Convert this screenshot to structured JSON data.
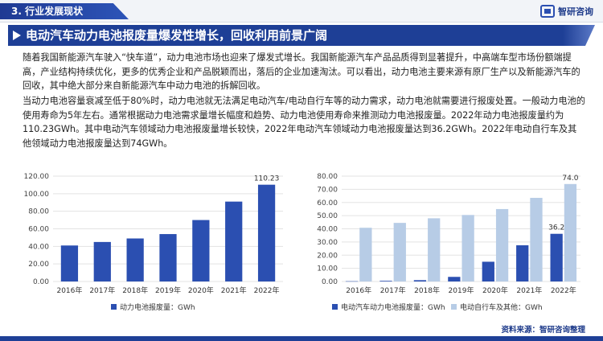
{
  "header": {
    "section": "3. 行业发展现状",
    "logo": "智研咨询"
  },
  "banner": {
    "title": "电动汽车动力电池报废量爆发性增长，回收利用前景广阔"
  },
  "paragraphs": [
    "随着我国新能源汽车驶入“快车道”，动力电池市场也迎来了爆发式增长。我国新能源汽车产品品质得到显著提升，中高端车型市场份额端提高，产业结构持续优化，更多的优秀企业和产品脱颖而出，落后的企业加速淘汰。可以看出，动力电池主要来源有原厂生产以及新能源汽车的回收，其中绝大部分来自新能源汽车中动力电池的拆解回收。",
    "当动力电池容量衰减至低于80%时，动力电池就无法满足电动汽车/电动自行车等的动力需求，动力电池就需要进行报废处置。一般动力电池的使用寿命为5年左右。通常根据动力电池需求量增长幅度和趋势、动力电池使用寿命来推测动力电池报废量。2022年动力电池报废量约为110.23GWh。其中电动汽车领域动力电池报废量增长较快，2022年电动汽车领域动力电池报废量达到36.2GWh。2022年电动自行车及其他领域动力电池报废量达到74GWh。"
  ],
  "chart_data": [
    {
      "type": "bar",
      "categories": [
        "2016年",
        "2017年",
        "2018年",
        "2019年",
        "2020年",
        "2021年",
        "2022年"
      ],
      "series": [
        {
          "name": "动力电池报废量：GWh",
          "values": [
            41,
            45,
            49,
            54,
            70,
            91,
            110.23
          ],
          "color": "#2b4fb1"
        }
      ],
      "data_labels": [
        {
          "index": 6,
          "text": "110.23"
        }
      ],
      "yticks": [
        "0.00",
        "20.00",
        "40.00",
        "60.00",
        "80.00",
        "100.00",
        "120.00"
      ],
      "ylim": [
        0,
        120
      ],
      "legend": "bottom"
    },
    {
      "type": "bar",
      "categories": [
        "2016年",
        "2017年",
        "2018年",
        "2019年",
        "2020年",
        "2021年",
        "2022年"
      ],
      "series": [
        {
          "name": "电动汽车动力电池报废量：GWh",
          "values": [
            0.2,
            0.5,
            1,
            3.5,
            15,
            27.5,
            36.2
          ],
          "color": "#2b4fb1"
        },
        {
          "name": "电动自行车及其他：GWh",
          "values": [
            40.8,
            44.5,
            48,
            50.5,
            55,
            63.5,
            74.0
          ],
          "color": "#b7cce6"
        }
      ],
      "data_labels": [
        {
          "series": 0,
          "index": 6,
          "text": "36.2"
        },
        {
          "series": 1,
          "index": 6,
          "text": "74.0"
        }
      ],
      "yticks": [
        "0.00",
        "10.00",
        "20.00",
        "30.00",
        "40.00",
        "50.00",
        "60.00",
        "70.00",
        "80.00"
      ],
      "ylim": [
        0,
        80
      ],
      "legend": "bottom"
    }
  ],
  "footer": {
    "source": "资料来源：智研咨询整理"
  }
}
